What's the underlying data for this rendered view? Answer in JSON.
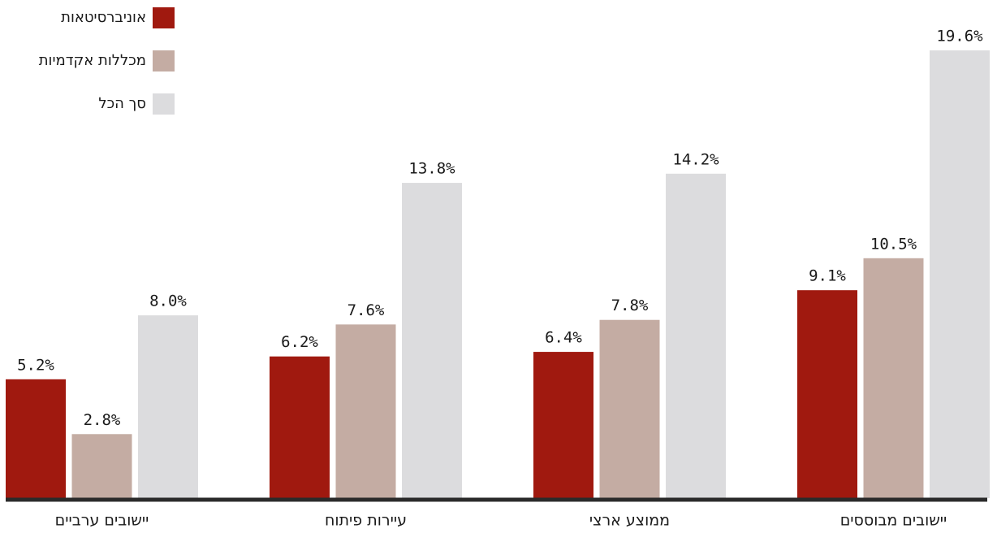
{
  "chart_data": {
    "type": "bar",
    "categories": [
      "יישובים ערביים",
      "עיירות פיתוח",
      "ממוצע ארצי",
      "יישובים מבוססים"
    ],
    "series": [
      {
        "name": "אוניברסיטאות",
        "color": "#a0190f",
        "values": [
          5.2,
          6.2,
          6.4,
          9.1
        ],
        "value_labels": [
          "5.2%",
          "6.2%",
          "6.4%",
          "9.1%"
        ]
      },
      {
        "name": "מכללות אקדמיות",
        "color": "#c4aca3",
        "values": [
          2.8,
          7.6,
          7.8,
          10.5
        ],
        "value_labels": [
          "2.8%",
          "7.6%",
          "7.8%",
          "10.5%"
        ]
      },
      {
        "name": "סך הכל",
        "color": "#dcdcde",
        "values": [
          8.0,
          13.8,
          14.2,
          19.6
        ],
        "value_labels": [
          "8.0%",
          "13.8%",
          "14.2%",
          "19.6%"
        ]
      }
    ],
    "legend": "top-left"
  }
}
